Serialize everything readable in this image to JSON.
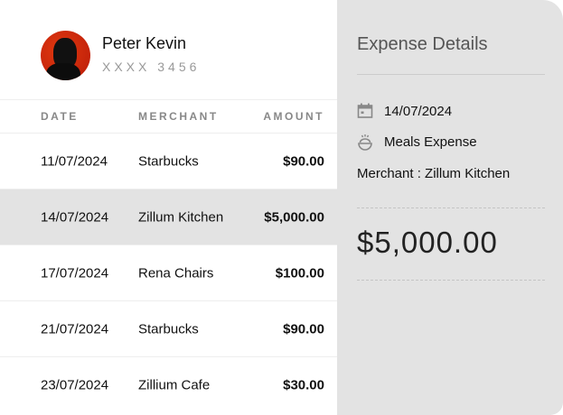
{
  "user": {
    "name": "Peter Kevin",
    "card": "XXXX 3456"
  },
  "table": {
    "headers": [
      "DATE",
      "MERCHANT",
      "AMOUNT"
    ],
    "rows": [
      {
        "date": "11/07/2024",
        "merchant": "Starbucks",
        "amount": "$90.00"
      },
      {
        "date": "14/07/2024",
        "merchant": "Zillum Kitchen",
        "amount": "$5,000.00",
        "selected": true
      },
      {
        "date": "17/07/2024",
        "merchant": "Rena Chairs",
        "amount": "$100.00"
      },
      {
        "date": "21/07/2024",
        "merchant": "Starbucks",
        "amount": "$90.00"
      },
      {
        "date": "23/07/2024",
        "merchant": "Zillium Cafe",
        "amount": "$30.00"
      }
    ]
  },
  "details": {
    "title": "Expense Details",
    "date": "14/07/2024",
    "category": "Meals Expense",
    "merchant": "Merchant : Zillum Kitchen",
    "amount": "$5,000.00",
    "date_icon": "calendar-icon",
    "category_icon": "meal-bowl-icon"
  }
}
